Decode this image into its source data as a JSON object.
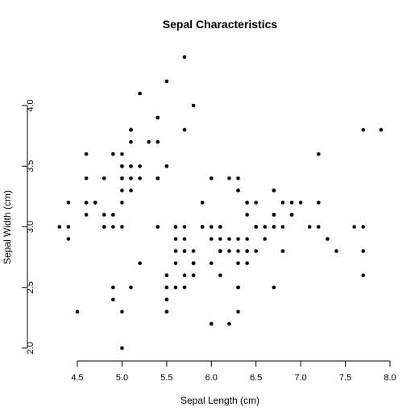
{
  "chart_data": {
    "type": "scatter",
    "title": "Sepal Characteristics",
    "xlabel": "Sepal Length (cm)",
    "ylabel": "Sepal Width (cm)",
    "xlim": [
      4.3,
      7.9
    ],
    "ylim": [
      2.0,
      4.4
    ],
    "xticks": [
      "4.5",
      "5.0",
      "5.5",
      "6.0",
      "6.5",
      "7.0",
      "7.5",
      "8.0"
    ],
    "yticks": [
      "2.0",
      "2.5",
      "3.0",
      "3.5",
      "4.0"
    ],
    "grid": false,
    "legend": "none",
    "point_color": "#000000",
    "points": [
      [
        5.1,
        3.5
      ],
      [
        4.9,
        3.0
      ],
      [
        4.7,
        3.2
      ],
      [
        4.6,
        3.1
      ],
      [
        5.0,
        3.6
      ],
      [
        5.4,
        3.9
      ],
      [
        4.6,
        3.4
      ],
      [
        5.0,
        3.4
      ],
      [
        4.4,
        2.9
      ],
      [
        4.9,
        3.1
      ],
      [
        5.4,
        3.7
      ],
      [
        4.8,
        3.4
      ],
      [
        4.8,
        3.0
      ],
      [
        4.3,
        3.0
      ],
      [
        5.8,
        4.0
      ],
      [
        5.7,
        4.4
      ],
      [
        5.4,
        3.9
      ],
      [
        5.1,
        3.5
      ],
      [
        5.7,
        3.8
      ],
      [
        5.1,
        3.8
      ],
      [
        5.4,
        3.4
      ],
      [
        5.1,
        3.7
      ],
      [
        4.6,
        3.6
      ],
      [
        5.1,
        3.3
      ],
      [
        4.8,
        3.4
      ],
      [
        5.0,
        3.0
      ],
      [
        5.0,
        3.4
      ],
      [
        5.2,
        3.5
      ],
      [
        5.2,
        3.4
      ],
      [
        4.7,
        3.2
      ],
      [
        4.8,
        3.1
      ],
      [
        5.4,
        3.4
      ],
      [
        5.2,
        4.1
      ],
      [
        5.5,
        4.2
      ],
      [
        4.9,
        3.1
      ],
      [
        5.0,
        3.2
      ],
      [
        5.5,
        3.5
      ],
      [
        4.9,
        3.6
      ],
      [
        4.4,
        3.0
      ],
      [
        5.1,
        3.4
      ],
      [
        5.0,
        3.5
      ],
      [
        4.5,
        2.3
      ],
      [
        4.4,
        3.2
      ],
      [
        5.0,
        3.5
      ],
      [
        5.1,
        3.8
      ],
      [
        4.8,
        3.0
      ],
      [
        5.1,
        3.8
      ],
      [
        4.6,
        3.2
      ],
      [
        5.3,
        3.7
      ],
      [
        5.0,
        3.3
      ],
      [
        7.0,
        3.2
      ],
      [
        6.4,
        3.2
      ],
      [
        6.9,
        3.1
      ],
      [
        5.5,
        2.3
      ],
      [
        6.5,
        2.8
      ],
      [
        5.7,
        2.8
      ],
      [
        6.3,
        3.3
      ],
      [
        4.9,
        2.4
      ],
      [
        6.6,
        2.9
      ],
      [
        5.2,
        2.7
      ],
      [
        5.0,
        2.0
      ],
      [
        5.9,
        3.0
      ],
      [
        6.0,
        2.2
      ],
      [
        6.1,
        2.9
      ],
      [
        5.6,
        2.9
      ],
      [
        6.7,
        3.1
      ],
      [
        5.6,
        3.0
      ],
      [
        5.8,
        2.7
      ],
      [
        6.2,
        2.2
      ],
      [
        5.6,
        2.5
      ],
      [
        5.9,
        3.2
      ],
      [
        6.1,
        2.8
      ],
      [
        6.3,
        2.5
      ],
      [
        6.1,
        2.8
      ],
      [
        6.4,
        2.9
      ],
      [
        6.6,
        3.0
      ],
      [
        6.8,
        2.8
      ],
      [
        6.7,
        3.0
      ],
      [
        6.0,
        2.9
      ],
      [
        5.7,
        2.6
      ],
      [
        5.5,
        2.4
      ],
      [
        5.5,
        2.4
      ],
      [
        5.8,
        2.7
      ],
      [
        6.0,
        2.7
      ],
      [
        5.4,
        3.0
      ],
      [
        6.0,
        3.4
      ],
      [
        6.7,
        3.1
      ],
      [
        6.3,
        2.3
      ],
      [
        5.6,
        3.0
      ],
      [
        5.5,
        2.5
      ],
      [
        5.5,
        2.6
      ],
      [
        6.1,
        3.0
      ],
      [
        5.8,
        2.6
      ],
      [
        5.0,
        2.3
      ],
      [
        5.6,
        2.7
      ],
      [
        5.7,
        3.0
      ],
      [
        5.7,
        2.9
      ],
      [
        6.2,
        2.9
      ],
      [
        5.1,
        2.5
      ],
      [
        5.7,
        2.8
      ],
      [
        6.3,
        3.3
      ],
      [
        5.8,
        2.7
      ],
      [
        7.1,
        3.0
      ],
      [
        6.3,
        2.9
      ],
      [
        6.5,
        3.0
      ],
      [
        7.6,
        3.0
      ],
      [
        4.9,
        2.5
      ],
      [
        7.3,
        2.9
      ],
      [
        6.7,
        2.5
      ],
      [
        7.2,
        3.6
      ],
      [
        6.5,
        3.2
      ],
      [
        6.4,
        2.7
      ],
      [
        6.8,
        3.0
      ],
      [
        5.7,
        2.5
      ],
      [
        5.8,
        2.8
      ],
      [
        6.4,
        3.2
      ],
      [
        6.5,
        3.0
      ],
      [
        7.7,
        3.8
      ],
      [
        7.7,
        2.6
      ],
      [
        6.0,
        2.2
      ],
      [
        6.9,
        3.2
      ],
      [
        5.6,
        2.8
      ],
      [
        7.7,
        2.8
      ],
      [
        6.3,
        2.7
      ],
      [
        6.7,
        3.3
      ],
      [
        7.2,
        3.2
      ],
      [
        6.2,
        2.8
      ],
      [
        6.1,
        3.0
      ],
      [
        6.4,
        2.8
      ],
      [
        7.2,
        3.0
      ],
      [
        7.4,
        2.8
      ],
      [
        7.9,
        3.8
      ],
      [
        6.4,
        2.8
      ],
      [
        6.3,
        2.8
      ],
      [
        6.1,
        2.6
      ],
      [
        7.7,
        3.0
      ],
      [
        6.3,
        3.4
      ],
      [
        6.4,
        3.1
      ],
      [
        6.0,
        3.0
      ],
      [
        6.9,
        3.1
      ],
      [
        6.7,
        3.1
      ],
      [
        6.9,
        3.1
      ],
      [
        5.8,
        2.7
      ],
      [
        6.8,
        3.2
      ],
      [
        6.7,
        3.3
      ],
      [
        6.7,
        3.0
      ],
      [
        6.3,
        2.5
      ],
      [
        6.5,
        3.0
      ],
      [
        6.2,
        3.4
      ],
      [
        5.9,
        3.0
      ]
    ]
  }
}
